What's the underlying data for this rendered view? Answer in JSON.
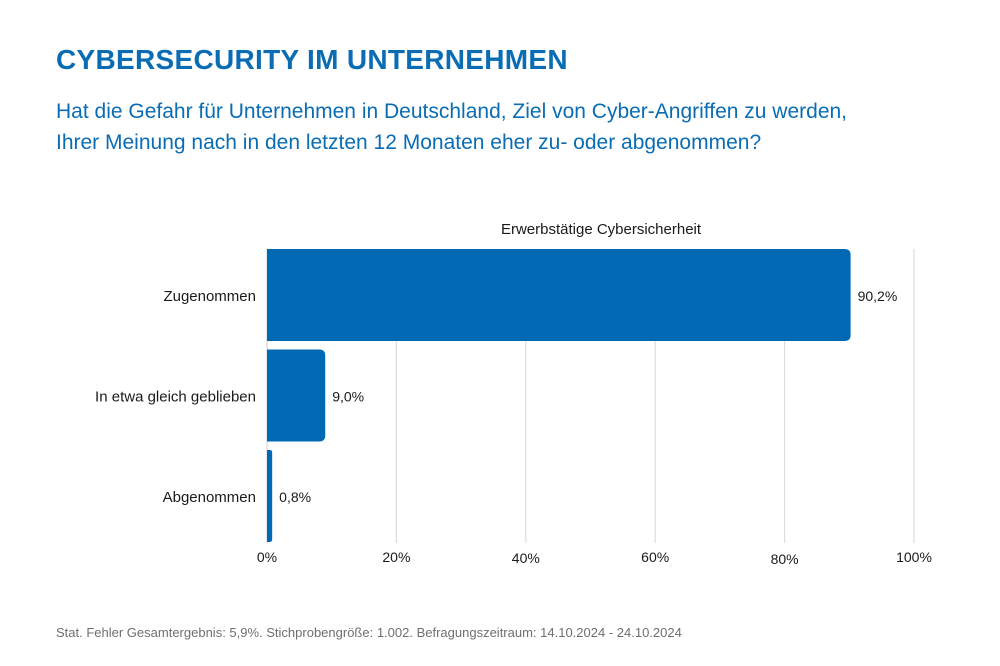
{
  "header": {
    "title": "CYBERSECURITY IM UNTERNEHMEN",
    "question_line1": "Hat die Gefahr für Unternehmen in Deutschland, Ziel von Cyber-Angriffen zu werden,",
    "question_line2": "Ihrer Meinung nach in den letzten 12 Monaten eher zu- oder abgenommen?"
  },
  "footer": {
    "note": "Stat. Fehler Gesamtergebnis: 5,9%. Stichprobengröße: 1.002. Befragungszeitraum: 14.10.2024 - 24.10.2024"
  },
  "colors": {
    "accent": "#0a6db4",
    "bar": "#0069b4",
    "grid": "#dddddd",
    "text": "#1a1a1a",
    "footer_text": "#6f6f6f"
  },
  "chart_data": {
    "type": "bar",
    "orientation": "horizontal",
    "title": "Erwerbstätige Cybersicherheit",
    "xlabel": "",
    "ylabel": "",
    "categories": [
      "Zugenommen",
      "In etwa gleich geblieben",
      "Abgenommen"
    ],
    "series": [
      {
        "name": "Erwerbstätige Cybersicherheit",
        "values": [
          90.2,
          9.0,
          0.8
        ],
        "labels": [
          "90,2%",
          "9,0%",
          "0,8%"
        ]
      }
    ],
    "xlim": [
      0,
      100
    ],
    "xticks": [
      0,
      20,
      40,
      60,
      80,
      100
    ],
    "xtick_labels": [
      "0%",
      "20%",
      "40%",
      "60%",
      "80%",
      "100%"
    ],
    "grid": "vertical",
    "legend": "none"
  }
}
